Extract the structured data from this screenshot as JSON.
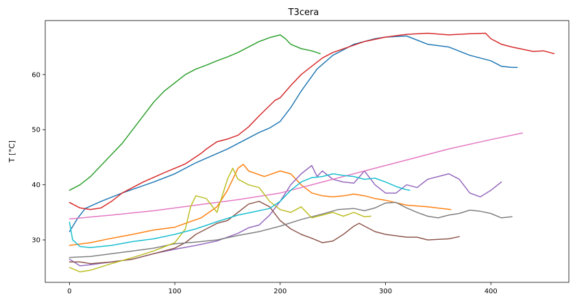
{
  "chart_data": {
    "type": "line",
    "title": "T3cera",
    "xlabel": "",
    "ylabel": "T [°C]",
    "xlim": [
      -23,
      474
    ],
    "ylim": [
      22.3,
      69.8
    ],
    "xticks": [
      0,
      100,
      200,
      300,
      400
    ],
    "yticks": [
      30,
      40,
      50,
      60
    ],
    "grid": false,
    "legend": "none",
    "series": [
      {
        "color": "#1f77b4",
        "points": [
          [
            0,
            31.5
          ],
          [
            8,
            34
          ],
          [
            15,
            35.7
          ],
          [
            30,
            37
          ],
          [
            50,
            38.5
          ],
          [
            80,
            40.5
          ],
          [
            100,
            42
          ],
          [
            120,
            44
          ],
          [
            150,
            46.5
          ],
          [
            180,
            49.5
          ],
          [
            190,
            50.3
          ],
          [
            200,
            51.5
          ],
          [
            210,
            54
          ],
          [
            220,
            57
          ],
          [
            235,
            61
          ],
          [
            250,
            63.5
          ],
          [
            270,
            65.5
          ],
          [
            290,
            66.5
          ],
          [
            300,
            66.8
          ],
          [
            320,
            67
          ],
          [
            340,
            65.5
          ],
          [
            360,
            65
          ],
          [
            380,
            63.5
          ],
          [
            400,
            62.5
          ],
          [
            410,
            61.5
          ],
          [
            420,
            61.3
          ],
          [
            425,
            61.3
          ]
        ]
      },
      {
        "color": "#ff7f0e",
        "points": [
          [
            0,
            29
          ],
          [
            20,
            29.5
          ],
          [
            40,
            30.3
          ],
          [
            60,
            31
          ],
          [
            80,
            31.8
          ],
          [
            100,
            32.3
          ],
          [
            110,
            33
          ],
          [
            125,
            34
          ],
          [
            140,
            36
          ],
          [
            150,
            39
          ],
          [
            160,
            43
          ],
          [
            165,
            43.7
          ],
          [
            170,
            42.5
          ],
          [
            185,
            41.5
          ],
          [
            200,
            42.5
          ],
          [
            210,
            42
          ],
          [
            220,
            40
          ],
          [
            230,
            38.5
          ],
          [
            240,
            38
          ],
          [
            250,
            37.8
          ],
          [
            260,
            38
          ],
          [
            270,
            38.3
          ],
          [
            280,
            38
          ],
          [
            290,
            37.5
          ],
          [
            300,
            37.2
          ],
          [
            320,
            36.3
          ],
          [
            340,
            36
          ],
          [
            362,
            35.5
          ]
        ]
      },
      {
        "color": "#2ca02c",
        "points": [
          [
            0,
            39
          ],
          [
            10,
            40
          ],
          [
            20,
            41.5
          ],
          [
            30,
            43.5
          ],
          [
            40,
            45.5
          ],
          [
            50,
            47.5
          ],
          [
            60,
            50
          ],
          [
            70,
            52.5
          ],
          [
            80,
            55
          ],
          [
            90,
            57
          ],
          [
            100,
            58.5
          ],
          [
            110,
            60
          ],
          [
            120,
            61
          ],
          [
            130,
            61.7
          ],
          [
            140,
            62.5
          ],
          [
            150,
            63.2
          ],
          [
            160,
            64
          ],
          [
            170,
            65
          ],
          [
            180,
            66
          ],
          [
            190,
            66.7
          ],
          [
            200,
            67.2
          ],
          [
            205,
            66.5
          ],
          [
            210,
            65.5
          ],
          [
            220,
            64.7
          ],
          [
            230,
            64.3
          ],
          [
            238,
            63.8
          ]
        ]
      },
      {
        "color": "#d62728",
        "points": [
          [
            0,
            36.8
          ],
          [
            10,
            35.8
          ],
          [
            20,
            35.5
          ],
          [
            30,
            35.8
          ],
          [
            40,
            37
          ],
          [
            50,
            38.5
          ],
          [
            70,
            40.5
          ],
          [
            90,
            42.2
          ],
          [
            110,
            43.8
          ],
          [
            125,
            45.7
          ],
          [
            130,
            46.5
          ],
          [
            140,
            47.8
          ],
          [
            150,
            48.3
          ],
          [
            160,
            49
          ],
          [
            170,
            50.5
          ],
          [
            180,
            52.5
          ],
          [
            195,
            55.3
          ],
          [
            200,
            55.8
          ],
          [
            210,
            58
          ],
          [
            220,
            60
          ],
          [
            230,
            61.5
          ],
          [
            240,
            63
          ],
          [
            250,
            64
          ],
          [
            265,
            65
          ],
          [
            280,
            66
          ],
          [
            300,
            66.8
          ],
          [
            320,
            67.3
          ],
          [
            340,
            67.5
          ],
          [
            360,
            67.2
          ],
          [
            380,
            67.4
          ],
          [
            395,
            67.5
          ],
          [
            400,
            66.5
          ],
          [
            410,
            65.5
          ],
          [
            420,
            65
          ],
          [
            440,
            64.2
          ],
          [
            450,
            64.3
          ],
          [
            460,
            63.8
          ]
        ]
      },
      {
        "color": "#9467bd",
        "points": [
          [
            0,
            26.5
          ],
          [
            10,
            25.3
          ],
          [
            20,
            25.5
          ],
          [
            40,
            26
          ],
          [
            60,
            26.5
          ],
          [
            80,
            27.5
          ],
          [
            100,
            28.3
          ],
          [
            120,
            29
          ],
          [
            140,
            29.8
          ],
          [
            160,
            31.2
          ],
          [
            170,
            32.2
          ],
          [
            180,
            32.7
          ],
          [
            190,
            34.5
          ],
          [
            200,
            37
          ],
          [
            210,
            40
          ],
          [
            220,
            42
          ],
          [
            230,
            43.5
          ],
          [
            235,
            41.5
          ],
          [
            240,
            42.5
          ],
          [
            250,
            41
          ],
          [
            260,
            40.5
          ],
          [
            270,
            40.3
          ],
          [
            280,
            42.5
          ],
          [
            290,
            40
          ],
          [
            300,
            38.5
          ],
          [
            310,
            38.5
          ],
          [
            320,
            40
          ],
          [
            330,
            39.5
          ],
          [
            340,
            41
          ],
          [
            350,
            41.5
          ],
          [
            360,
            42
          ],
          [
            370,
            41
          ],
          [
            380,
            38.5
          ],
          [
            390,
            37.8
          ],
          [
            400,
            39
          ],
          [
            410,
            40.5
          ]
        ]
      },
      {
        "color": "#8c564b",
        "points": [
          [
            0,
            26
          ],
          [
            10,
            26
          ],
          [
            20,
            25.7
          ],
          [
            40,
            26
          ],
          [
            60,
            26.5
          ],
          [
            80,
            27.5
          ],
          [
            100,
            28.5
          ],
          [
            110,
            29.5
          ],
          [
            120,
            31
          ],
          [
            130,
            32
          ],
          [
            140,
            33
          ],
          [
            150,
            33.5
          ],
          [
            160,
            35
          ],
          [
            170,
            36.5
          ],
          [
            180,
            37
          ],
          [
            185,
            36.5
          ],
          [
            190,
            36
          ],
          [
            200,
            33.5
          ],
          [
            210,
            32
          ],
          [
            220,
            31
          ],
          [
            230,
            30.3
          ],
          [
            240,
            29.5
          ],
          [
            250,
            29.8
          ],
          [
            260,
            31
          ],
          [
            270,
            32.5
          ],
          [
            275,
            33
          ],
          [
            280,
            32.5
          ],
          [
            290,
            31.5
          ],
          [
            300,
            31
          ],
          [
            320,
            30.5
          ],
          [
            330,
            30.5
          ],
          [
            340,
            30
          ],
          [
            360,
            30.2
          ],
          [
            370,
            30.6
          ]
        ]
      },
      {
        "color": "#e377c2",
        "points": [
          [
            0,
            33.8
          ],
          [
            40,
            34.5
          ],
          [
            80,
            35.3
          ],
          [
            120,
            36.3
          ],
          [
            160,
            37.3
          ],
          [
            200,
            38.5
          ],
          [
            240,
            40.5
          ],
          [
            280,
            42.5
          ],
          [
            320,
            44.5
          ],
          [
            360,
            46.5
          ],
          [
            400,
            48.2
          ],
          [
            430,
            49.4
          ]
        ]
      },
      {
        "color": "#7f7f7f",
        "points": [
          [
            0,
            26.8
          ],
          [
            20,
            27
          ],
          [
            40,
            27.5
          ],
          [
            60,
            28
          ],
          [
            80,
            28.5
          ],
          [
            100,
            29.3
          ],
          [
            120,
            29.6
          ],
          [
            140,
            30
          ],
          [
            160,
            30.8
          ],
          [
            180,
            31.5
          ],
          [
            200,
            32.5
          ],
          [
            220,
            33.7
          ],
          [
            240,
            34.7
          ],
          [
            255,
            35.5
          ],
          [
            270,
            35.7
          ],
          [
            280,
            35.3
          ],
          [
            290,
            35.8
          ],
          [
            300,
            36.7
          ],
          [
            310,
            36.8
          ],
          [
            320,
            35.8
          ],
          [
            330,
            35
          ],
          [
            340,
            34.3
          ],
          [
            350,
            34
          ],
          [
            360,
            34.5
          ],
          [
            370,
            34.8
          ],
          [
            380,
            35.4
          ],
          [
            390,
            35.2
          ],
          [
            400,
            34.8
          ],
          [
            410,
            34
          ],
          [
            420,
            34.2
          ]
        ]
      },
      {
        "color": "#bcbd22",
        "points": [
          [
            0,
            25
          ],
          [
            10,
            24.2
          ],
          [
            20,
            24.5
          ],
          [
            40,
            25.7
          ],
          [
            60,
            26.8
          ],
          [
            80,
            28
          ],
          [
            100,
            29.5
          ],
          [
            110,
            32
          ],
          [
            115,
            36
          ],
          [
            120,
            38
          ],
          [
            130,
            37.5
          ],
          [
            140,
            35
          ],
          [
            150,
            41
          ],
          [
            155,
            43
          ],
          [
            160,
            41
          ],
          [
            170,
            40
          ],
          [
            180,
            39.5
          ],
          [
            190,
            37
          ],
          [
            200,
            35.5
          ],
          [
            210,
            35
          ],
          [
            220,
            36
          ],
          [
            230,
            34
          ],
          [
            240,
            34.5
          ],
          [
            250,
            35
          ],
          [
            260,
            34.3
          ],
          [
            270,
            35
          ],
          [
            280,
            34.2
          ],
          [
            286,
            34.3
          ]
        ]
      },
      {
        "color": "#17becf",
        "points": [
          [
            0,
            33.2
          ],
          [
            3,
            30
          ],
          [
            10,
            28.8
          ],
          [
            20,
            28.6
          ],
          [
            40,
            29
          ],
          [
            60,
            29.7
          ],
          [
            80,
            30.2
          ],
          [
            100,
            31
          ],
          [
            120,
            32
          ],
          [
            140,
            33.3
          ],
          [
            160,
            34.5
          ],
          [
            180,
            35.3
          ],
          [
            190,
            35.7
          ],
          [
            200,
            37
          ],
          [
            210,
            39
          ],
          [
            220,
            40.5
          ],
          [
            230,
            41.3
          ],
          [
            240,
            41.5
          ],
          [
            250,
            42
          ],
          [
            260,
            41.7
          ],
          [
            270,
            41.5
          ],
          [
            280,
            41
          ],
          [
            290,
            41.2
          ],
          [
            300,
            40.5
          ],
          [
            310,
            39.7
          ],
          [
            318,
            39.2
          ],
          [
            323,
            39
          ]
        ]
      }
    ]
  }
}
